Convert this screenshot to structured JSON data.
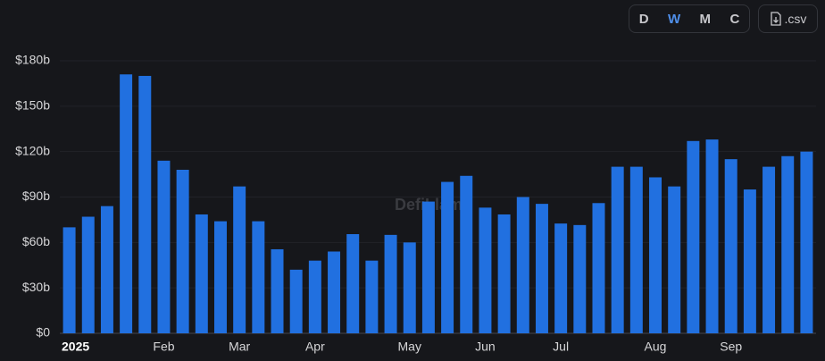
{
  "controls": {
    "intervals": [
      "D",
      "W",
      "M",
      "C"
    ],
    "active": "W",
    "download": ".csv"
  },
  "chart_data": {
    "type": "bar",
    "watermark": "DefiLlama",
    "categories": [
      "2025",
      null,
      null,
      null,
      null,
      "Feb",
      null,
      null,
      null,
      "Mar",
      null,
      null,
      null,
      "Apr",
      null,
      null,
      null,
      null,
      "May",
      null,
      null,
      null,
      "Jun",
      null,
      null,
      null,
      "Jul",
      null,
      null,
      null,
      null,
      "Aug",
      null,
      null,
      null,
      "Sep",
      null,
      null,
      null,
      null
    ],
    "values": [
      70,
      77,
      84,
      171,
      170,
      114,
      108,
      78.5,
      74,
      97,
      74,
      55.5,
      42,
      48,
      54,
      65.5,
      48,
      65,
      60,
      87,
      100,
      104,
      83,
      78.5,
      90,
      85.5,
      72.5,
      71.5,
      86,
      110,
      110,
      103,
      97,
      127,
      128,
      115,
      95,
      110,
      117,
      120
    ],
    "color": "#2170e0",
    "ylim": [
      0,
      180
    ],
    "yticks": [
      {
        "value": 0,
        "label": "$0"
      },
      {
        "value": 30,
        "label": "$30b"
      },
      {
        "value": 60,
        "label": "$60b"
      },
      {
        "value": 90,
        "label": "$90b"
      },
      {
        "value": 120,
        "label": "$120b"
      },
      {
        "value": 150,
        "label": "$150b"
      },
      {
        "value": 180,
        "label": "$180b"
      }
    ],
    "grid": true
  }
}
